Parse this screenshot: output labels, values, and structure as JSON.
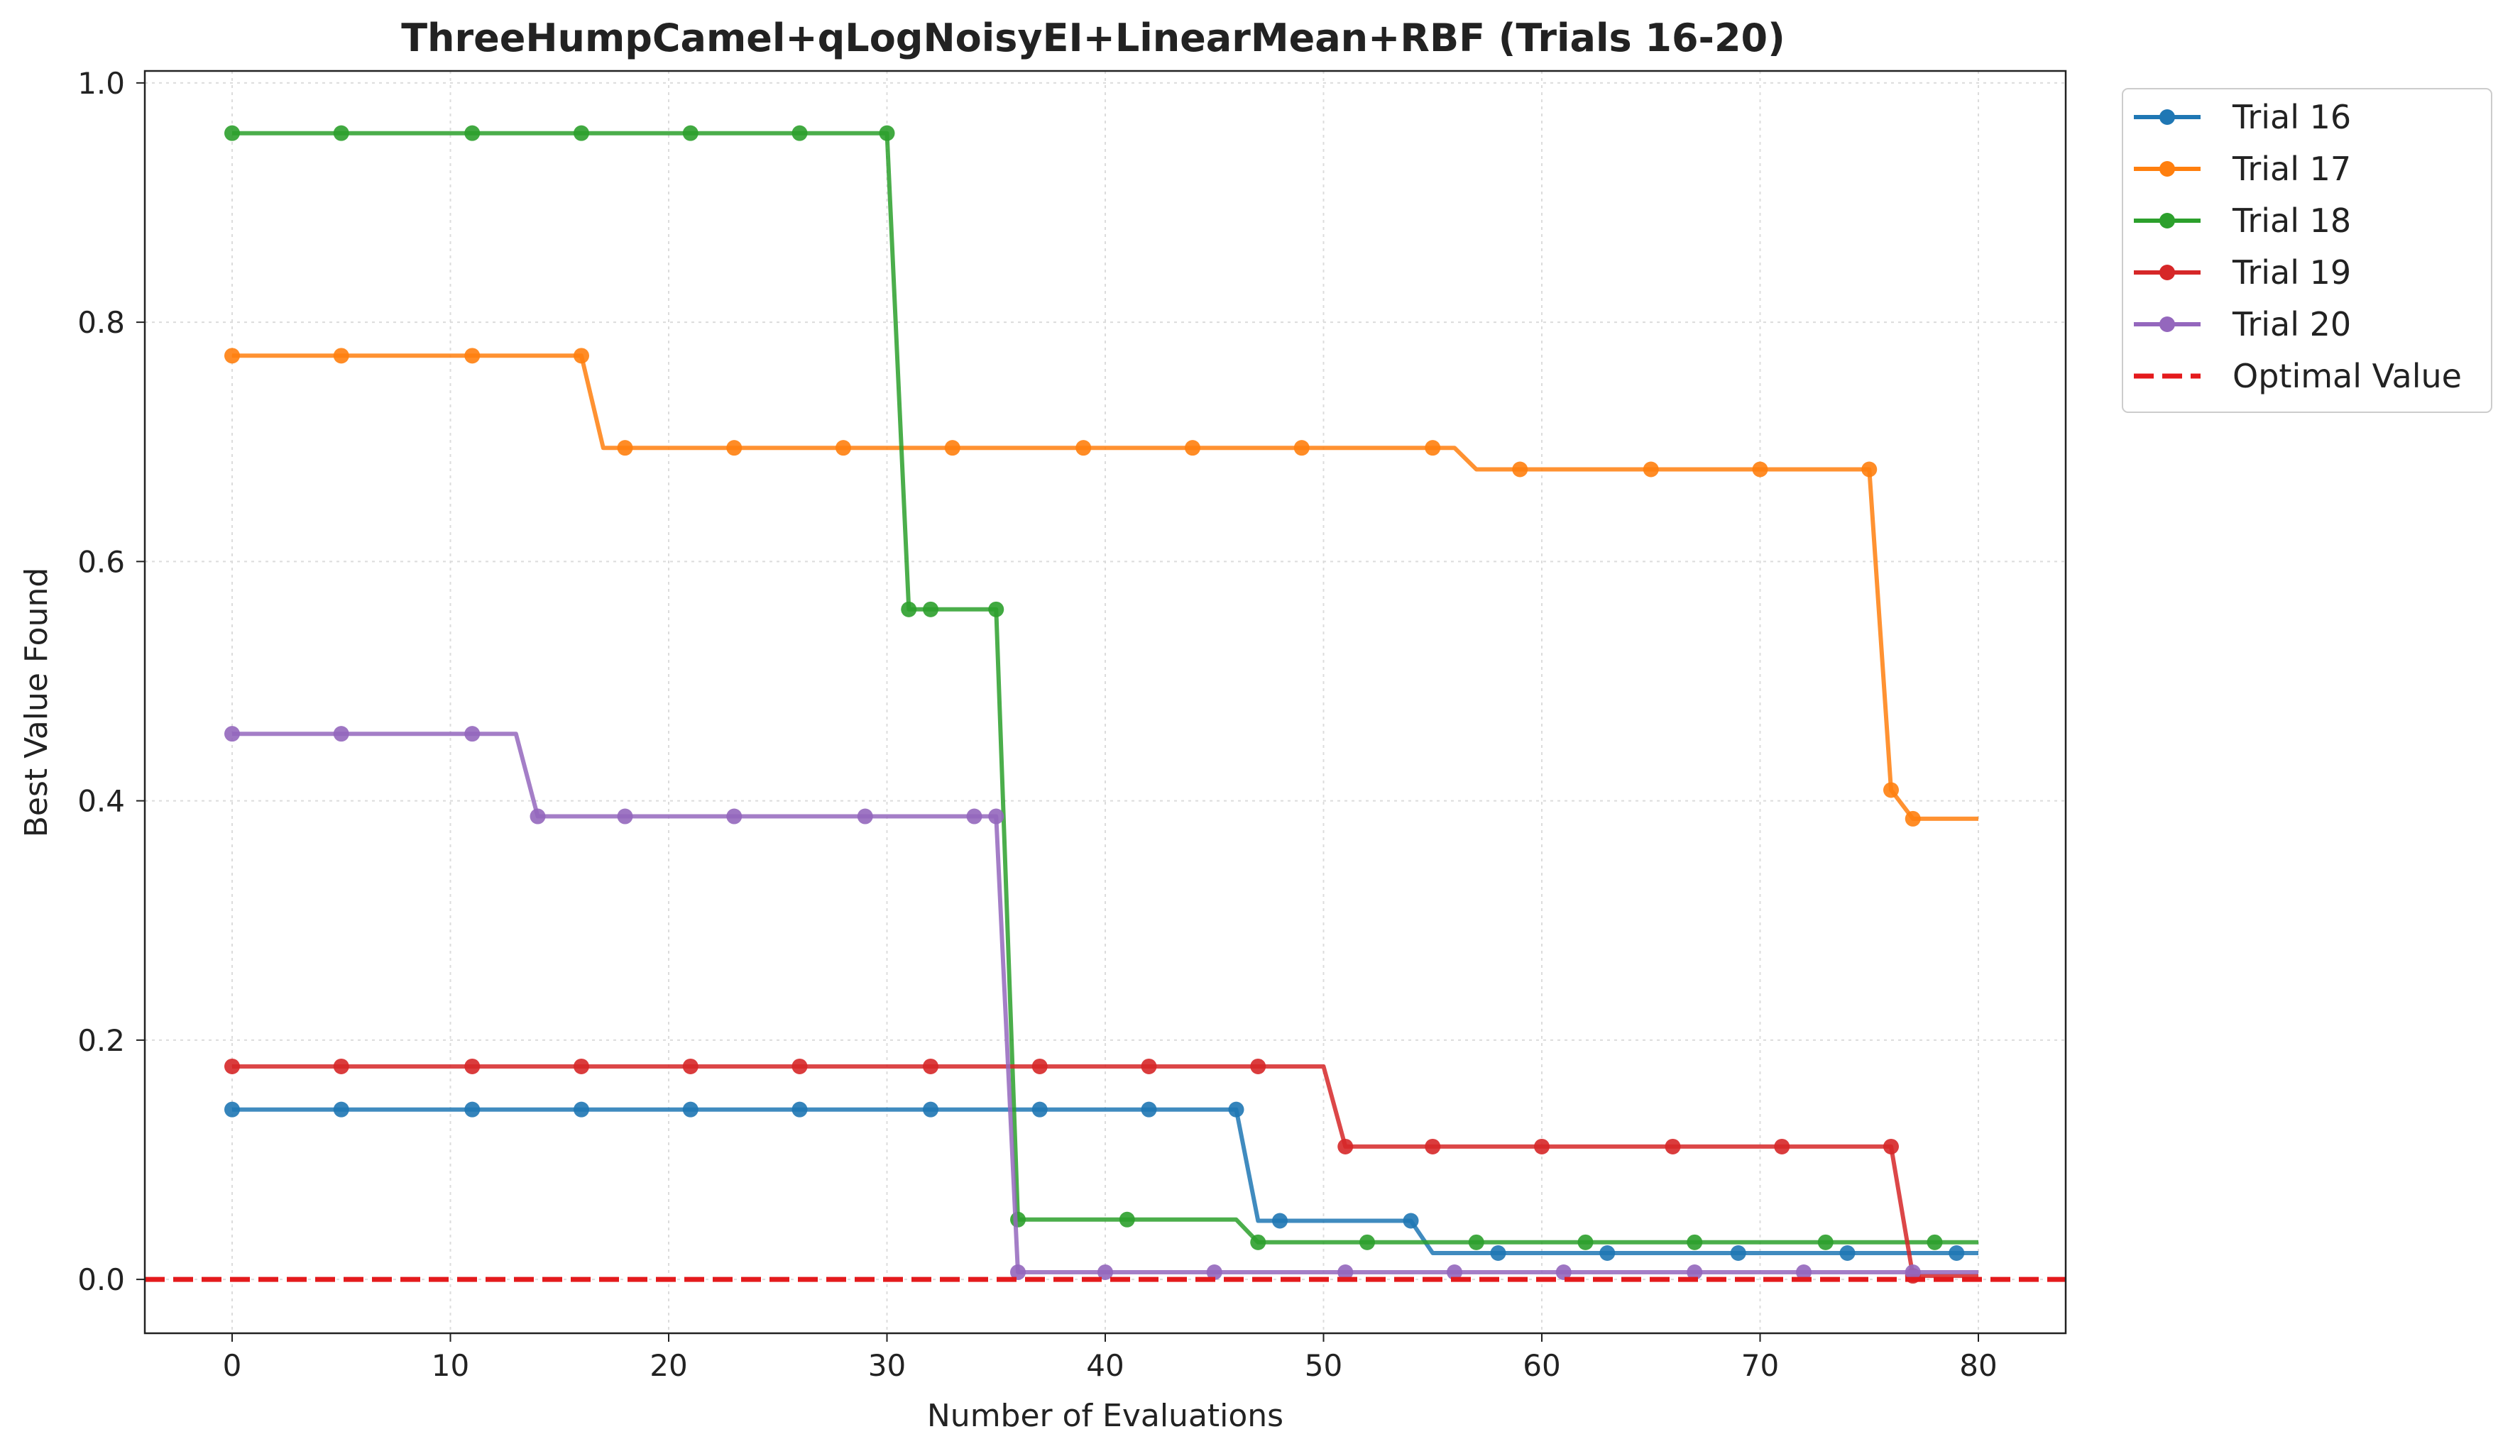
{
  "chart_data": {
    "type": "line",
    "title": "ThreeHumpCamel+qLogNoisyEI+LinearMean+RBF (Trials 16-20)",
    "xlabel": "Number of Evaluations",
    "ylabel": "Best Value Found",
    "xlim": [
      -4,
      84
    ],
    "ylim": [
      -0.045,
      1.01
    ],
    "xticks": [
      0,
      10,
      20,
      30,
      40,
      50,
      60,
      70,
      80
    ],
    "yticks": [
      0.0,
      0.2,
      0.4,
      0.6,
      0.8,
      1.0
    ],
    "ytick_labels": [
      "0.0",
      "0.2",
      "0.4",
      "0.6",
      "0.8",
      "1.0"
    ],
    "grid": true,
    "legend_position": "outside-top-right",
    "optimal_value": {
      "name": "Optimal Value",
      "value": 0.0,
      "color": "#e41a1c",
      "style": "dashed"
    },
    "series": [
      {
        "name": "Trial 16",
        "color": "#1f77b4",
        "steps": [
          [
            0,
            0.142
          ],
          [
            46,
            0.142
          ],
          [
            47,
            0.049
          ],
          [
            54,
            0.049
          ],
          [
            55,
            0.022
          ],
          [
            80,
            0.022
          ]
        ],
        "markers_x": [
          0,
          5,
          11,
          16,
          21,
          26,
          32,
          37,
          42,
          46,
          48,
          54,
          58,
          63,
          69,
          74,
          79
        ]
      },
      {
        "name": "Trial 17",
        "color": "#ff7f0e",
        "steps": [
          [
            0,
            0.772
          ],
          [
            16,
            0.772
          ],
          [
            17,
            0.695
          ],
          [
            56,
            0.695
          ],
          [
            57,
            0.677
          ],
          [
            75,
            0.677
          ],
          [
            76,
            0.409
          ],
          [
            77,
            0.385
          ],
          [
            80,
            0.385
          ]
        ],
        "markers_x": [
          0,
          5,
          11,
          16,
          18,
          23,
          28,
          33,
          39,
          44,
          49,
          55,
          59,
          65,
          70,
          75,
          76,
          77
        ]
      },
      {
        "name": "Trial 18",
        "color": "#2ca02c",
        "steps": [
          [
            0,
            0.958
          ],
          [
            30,
            0.958
          ],
          [
            31,
            0.56
          ],
          [
            35,
            0.56
          ],
          [
            36,
            0.05
          ],
          [
            46,
            0.05
          ],
          [
            47,
            0.031
          ],
          [
            80,
            0.031
          ]
        ],
        "markers_x": [
          0,
          5,
          11,
          16,
          21,
          26,
          30,
          31,
          32,
          35,
          36,
          41,
          47,
          52,
          57,
          62,
          67,
          73,
          78
        ]
      },
      {
        "name": "Trial 19",
        "color": "#d62728",
        "steps": [
          [
            0,
            0.178
          ],
          [
            50,
            0.178
          ],
          [
            51,
            0.111
          ],
          [
            76,
            0.111
          ],
          [
            77,
            0.003
          ],
          [
            80,
            0.003
          ]
        ],
        "markers_x": [
          0,
          5,
          11,
          16,
          21,
          26,
          32,
          37,
          42,
          47,
          51,
          55,
          60,
          66,
          71,
          76,
          77
        ]
      },
      {
        "name": "Trial 20",
        "color": "#9467bd",
        "steps": [
          [
            0,
            0.456
          ],
          [
            13,
            0.456
          ],
          [
            14,
            0.387
          ],
          [
            35,
            0.387
          ],
          [
            36,
            0.006
          ],
          [
            80,
            0.006
          ]
        ],
        "markers_x": [
          0,
          5,
          11,
          14,
          18,
          23,
          29,
          34,
          35,
          36,
          40,
          45,
          51,
          56,
          61,
          67,
          72,
          77
        ]
      }
    ]
  }
}
